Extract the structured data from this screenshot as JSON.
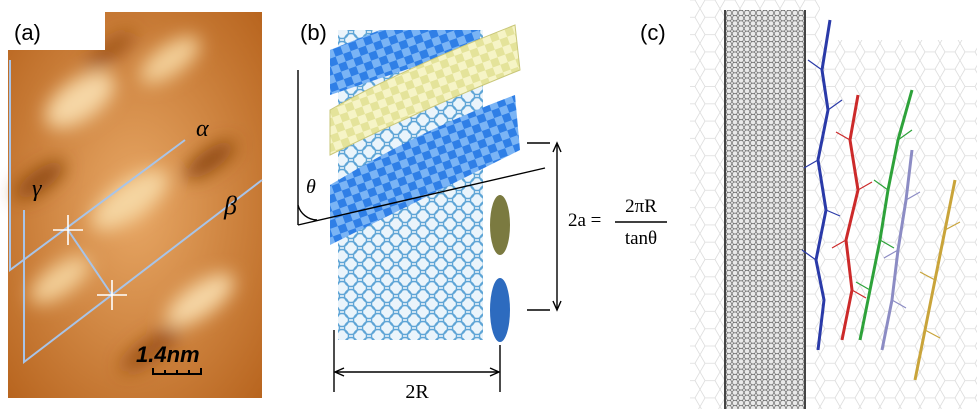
{
  "panels": [
    {
      "label": "(a)",
      "annotations": [
        "α",
        "β",
        "γ"
      ],
      "scale_bar": "1.4nm"
    },
    {
      "label": "(b)",
      "angle": "θ",
      "equation": {
        "lhs": "2a =",
        "numerator": "2πR",
        "denominator": "tanθ"
      },
      "width": "2R"
    },
    {
      "label": "(c)"
    }
  ]
}
